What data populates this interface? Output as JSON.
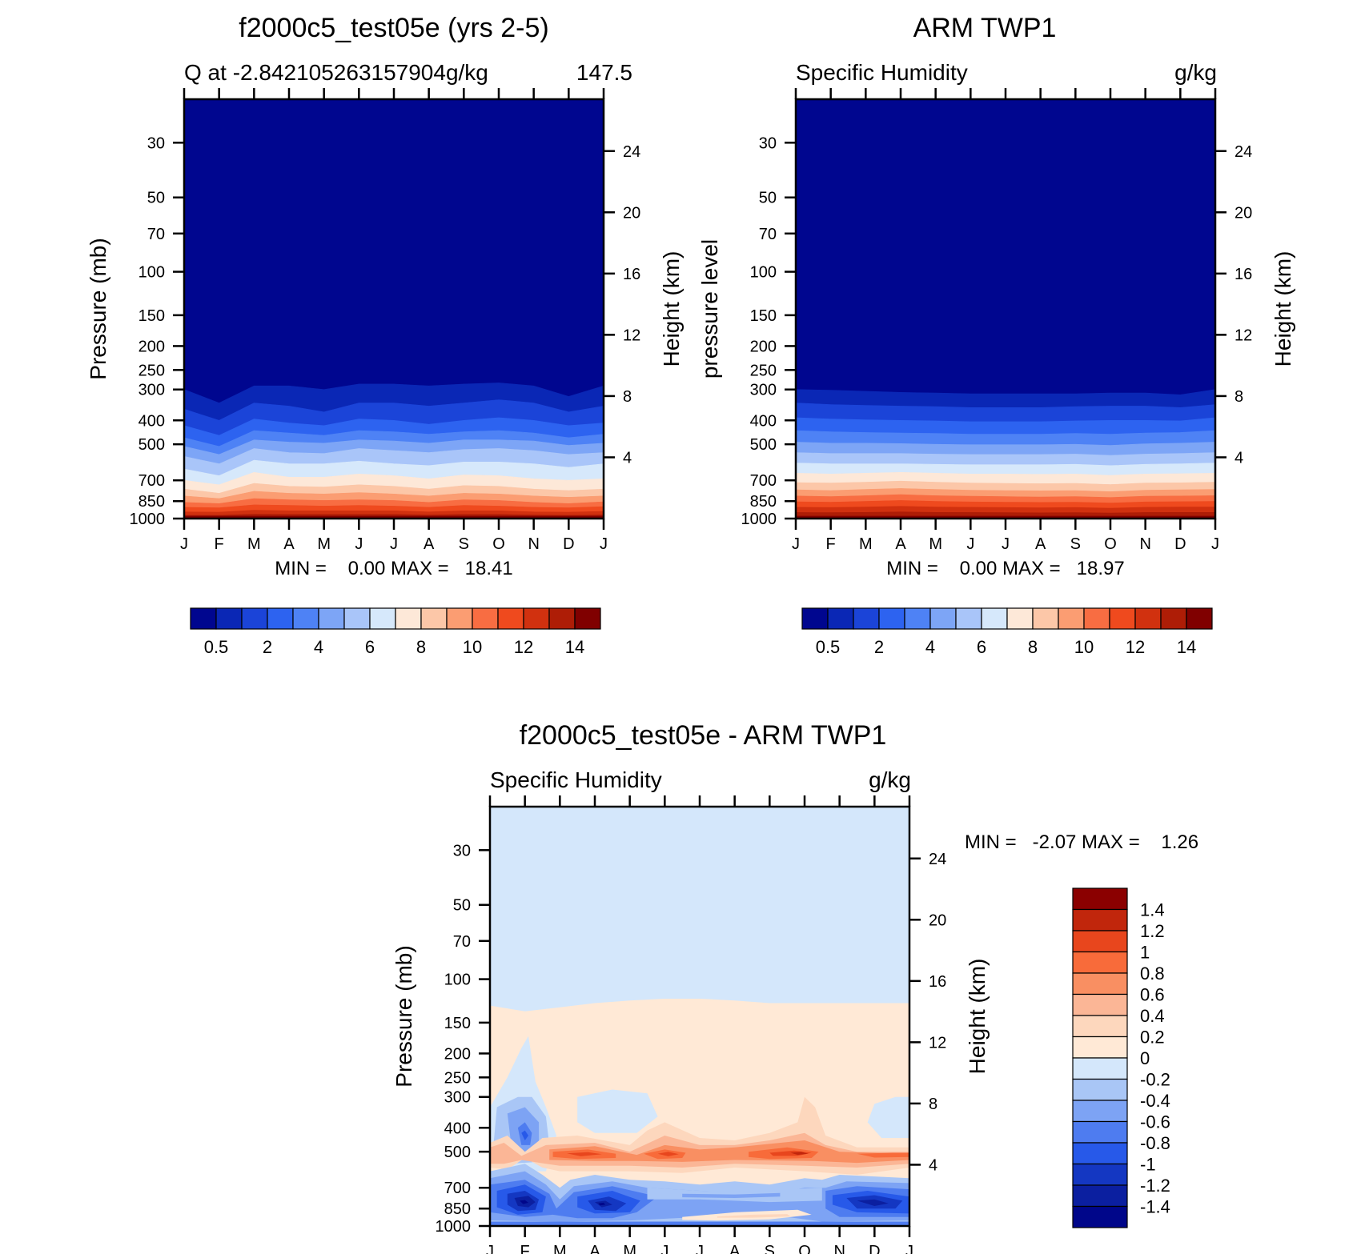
{
  "chart_data": [
    {
      "type": "contour",
      "title": "f2000c5_test05e (yrs 2-5)",
      "subtitle_left": "Q at -2.842105263157904g/kg",
      "subtitle_right": "147.5",
      "ylabel": "Pressure (mb)",
      "y2label": "Height (km)",
      "min_max": "MIN =    0.00 MAX =   18.41",
      "months": [
        "J",
        "F",
        "M",
        "A",
        "M",
        "J",
        "J",
        "A",
        "S",
        "O",
        "N",
        "D",
        "J"
      ],
      "pressure_ticks": [
        "30",
        "50",
        "70",
        "100",
        "150",
        "200",
        "250",
        "300",
        "400",
        "500",
        "700",
        "850",
        "1000"
      ],
      "pressure_values": [
        30,
        50,
        70,
        100,
        150,
        200,
        250,
        300,
        400,
        500,
        700,
        850,
        1000
      ],
      "height_ticks": [
        "24",
        "20",
        "16",
        "12",
        "8",
        "4"
      ],
      "height_values": [
        24,
        20,
        16,
        12,
        8,
        4
      ],
      "ylim": [
        20,
        1000
      ],
      "colorbar_labels": [
        "0.5",
        "2",
        "4",
        "6",
        "8",
        "10",
        "12",
        "14"
      ],
      "contour_boundaries_p": [
        [
          300,
          340,
          290,
          290,
          300,
          285,
          285,
          290,
          285,
          282,
          290,
          320,
          290
        ],
        [
          360,
          400,
          340,
          350,
          370,
          340,
          340,
          350,
          340,
          330,
          340,
          370,
          350
        ],
        [
          420,
          460,
          395,
          410,
          420,
          395,
          400,
          415,
          400,
          390,
          400,
          420,
          410
        ],
        [
          470,
          510,
          440,
          450,
          460,
          440,
          445,
          455,
          445,
          440,
          450,
          470,
          455
        ],
        [
          510,
          550,
          480,
          490,
          495,
          480,
          485,
          495,
          480,
          480,
          485,
          505,
          495
        ],
        [
          560,
          600,
          520,
          540,
          545,
          520,
          530,
          540,
          525,
          520,
          530,
          550,
          540
        ],
        [
          630,
          670,
          580,
          600,
          600,
          585,
          600,
          610,
          590,
          590,
          600,
          620,
          600
        ],
        [
          700,
          730,
          650,
          680,
          680,
          660,
          670,
          690,
          665,
          670,
          690,
          700,
          690
        ],
        [
          760,
          790,
          720,
          740,
          745,
          730,
          740,
          760,
          735,
          740,
          760,
          770,
          760
        ],
        [
          810,
          830,
          775,
          790,
          795,
          785,
          795,
          810,
          790,
          795,
          810,
          820,
          810
        ],
        [
          860,
          870,
          830,
          840,
          845,
          840,
          845,
          860,
          840,
          845,
          860,
          870,
          855
        ],
        [
          900,
          905,
          880,
          885,
          890,
          885,
          890,
          900,
          885,
          890,
          900,
          905,
          895
        ],
        [
          940,
          942,
          925,
          930,
          930,
          930,
          930,
          940,
          930,
          930,
          940,
          942,
          935
        ],
        [
          970,
          970,
          960,
          962,
          962,
          962,
          962,
          968,
          962,
          962,
          968,
          970,
          966
        ]
      ]
    },
    {
      "type": "contour",
      "title": "ARM TWP1",
      "subtitle_left": "Specific Humidity",
      "subtitle_right": "g/kg",
      "ylabel": "pressure level",
      "y2label": "Height (km)",
      "min_max": "MIN =    0.00 MAX =   18.97",
      "months": [
        "J",
        "F",
        "M",
        "A",
        "M",
        "J",
        "J",
        "A",
        "S",
        "O",
        "N",
        "D",
        "J"
      ],
      "pressure_ticks": [
        "30",
        "50",
        "70",
        "100",
        "150",
        "200",
        "250",
        "300",
        "400",
        "500",
        "700",
        "850",
        "1000"
      ],
      "pressure_values": [
        30,
        50,
        70,
        100,
        150,
        200,
        250,
        300,
        400,
        500,
        700,
        850,
        1000
      ],
      "height_ticks": [
        "24",
        "20",
        "16",
        "12",
        "8",
        "4"
      ],
      "height_values": [
        24,
        20,
        16,
        12,
        8,
        4
      ],
      "ylim": [
        20,
        1000
      ],
      "colorbar_labels": [
        "0.5",
        "2",
        "4",
        "6",
        "8",
        "10",
        "12",
        "14"
      ],
      "contour_boundaries_p": [
        [
          300,
          302,
          305,
          308,
          310,
          312,
          312,
          312,
          312,
          310,
          310,
          315,
          300
        ],
        [
          340,
          345,
          348,
          350,
          352,
          355,
          355,
          355,
          352,
          350,
          350,
          355,
          345
        ],
        [
          390,
          395,
          398,
          400,
          402,
          405,
          405,
          405,
          402,
          400,
          400,
          402,
          390
        ],
        [
          440,
          445,
          448,
          450,
          452,
          455,
          455,
          455,
          452,
          455,
          450,
          448,
          440
        ],
        [
          490,
          495,
          495,
          497,
          500,
          502,
          502,
          502,
          500,
          505,
          498,
          495,
          490
        ],
        [
          540,
          545,
          545,
          545,
          548,
          550,
          550,
          550,
          548,
          555,
          548,
          545,
          540
        ],
        [
          595,
          600,
          600,
          600,
          603,
          605,
          605,
          605,
          603,
          610,
          603,
          600,
          595
        ],
        [
          655,
          660,
          655,
          650,
          655,
          660,
          660,
          662,
          660,
          668,
          660,
          658,
          655
        ],
        [
          715,
          718,
          712,
          705,
          712,
          718,
          720,
          722,
          720,
          728,
          718,
          716,
          712
        ],
        [
          765,
          770,
          762,
          755,
          762,
          768,
          770,
          772,
          770,
          778,
          768,
          765,
          762
        ],
        [
          810,
          815,
          808,
          800,
          808,
          812,
          815,
          818,
          815,
          822,
          812,
          810,
          808
        ],
        [
          855,
          858,
          852,
          845,
          852,
          856,
          858,
          860,
          858,
          865,
          856,
          854,
          852
        ],
        [
          900,
          902,
          898,
          892,
          898,
          900,
          902,
          905,
          902,
          908,
          900,
          898,
          898
        ],
        [
          945,
          946,
          944,
          940,
          944,
          945,
          946,
          948,
          946,
          950,
          945,
          944,
          944
        ]
      ]
    },
    {
      "type": "contour",
      "title": "f2000c5_test05e - ARM TWP1",
      "subtitle_left": "Specific Humidity",
      "subtitle_right": "g/kg",
      "ylabel": "Pressure (mb)",
      "y2label": "Height (km)",
      "min_max": "MIN =   -2.07 MAX =    1.26",
      "months": [
        "J",
        "F",
        "M",
        "A",
        "M",
        "J",
        "J",
        "A",
        "S",
        "O",
        "N",
        "D",
        "J"
      ],
      "pressure_ticks": [
        "30",
        "50",
        "70",
        "100",
        "150",
        "200",
        "250",
        "300",
        "400",
        "500",
        "700",
        "850",
        "1000"
      ],
      "pressure_values": [
        30,
        50,
        70,
        100,
        150,
        200,
        250,
        300,
        400,
        500,
        700,
        850,
        1000
      ],
      "height_ticks": [
        "24",
        "20",
        "16",
        "12",
        "8",
        "4"
      ],
      "height_values": [
        24,
        20,
        16,
        12,
        8,
        4
      ],
      "ylim": [
        20,
        1000
      ],
      "colorbar_labels": [
        "1.4",
        "1.2",
        "1",
        "0.8",
        "0.6",
        "0.4",
        "0.2",
        "0",
        "-0.2",
        "-0.4",
        "-0.6",
        "-0.8",
        "-1",
        "-1.2",
        "-1.4"
      ],
      "zero_boundary_p": [
        128,
        135,
        130,
        125,
        122,
        120,
        120,
        122,
        125,
        125,
        125,
        125,
        125
      ]
    }
  ]
}
